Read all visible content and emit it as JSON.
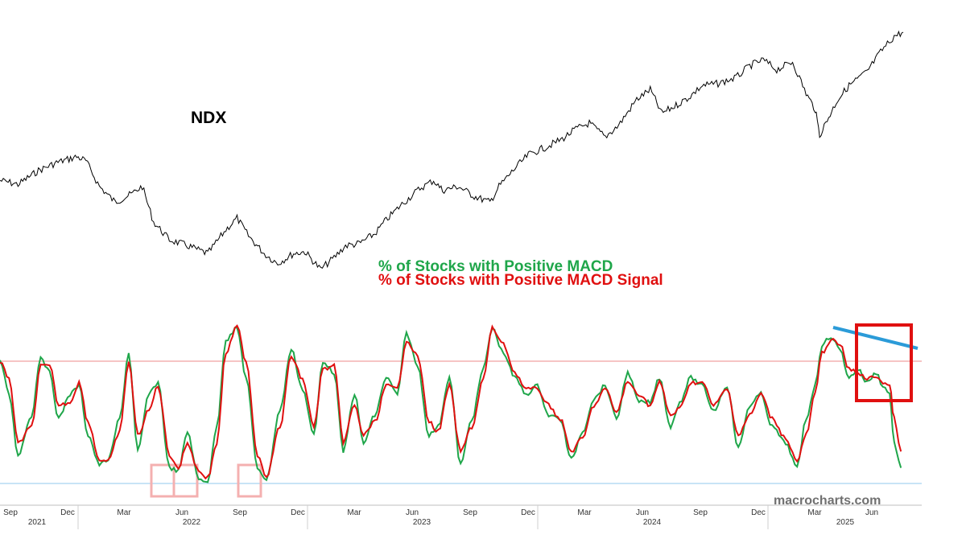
{
  "labels": {
    "index_name": "NDX",
    "legend_green": "% of Stocks with Positive MACD",
    "legend_red": "% of Stocks with Positive MACD Signal",
    "watermark": "macrocharts.com"
  },
  "colors": {
    "price_line": "#000000",
    "green": "#1fa64a",
    "red": "#e01010",
    "upper_ref": "#f0a0a0",
    "lower_ref": "#a8d4f0",
    "trendline": "#2b9bd8",
    "highlight_box": "#e01010",
    "low_box": "#f4b0b0"
  },
  "axis": {
    "months": [
      "Sep",
      "Dec",
      "Mar",
      "Jun",
      "Sep",
      "Dec",
      "Mar",
      "Jun",
      "Sep",
      "Dec",
      "Mar",
      "Jun",
      "Sep",
      "Dec",
      "Mar",
      "Jun"
    ],
    "years": [
      "2021",
      "2022",
      "2023",
      "2024",
      "2025"
    ]
  },
  "chart_data": [
    {
      "type": "line",
      "series": [
        {
          "name": "NDX",
          "x": [
            2021.62,
            2021.7,
            2021.79,
            2021.87,
            2021.96,
            2022.0,
            2022.06,
            2022.13,
            2022.2,
            2022.25,
            2022.3,
            2022.37,
            2022.45,
            2022.54,
            2022.62,
            2022.67,
            2022.72,
            2022.79,
            2022.85,
            2022.92,
            2022.97,
            2023.04,
            2023.1,
            2023.15,
            2023.21,
            2023.28,
            2023.33,
            2023.4,
            2023.48,
            2023.54,
            2023.58,
            2023.65,
            2023.72,
            2023.79,
            2023.83,
            2023.9,
            2023.96,
            2024.04,
            2024.11,
            2024.17,
            2024.23,
            2024.3,
            2024.36,
            2024.44,
            2024.5,
            2024.55,
            2024.6,
            2024.67,
            2024.73,
            2024.8,
            2024.88,
            2024.94,
            2025.0,
            2025.06,
            2025.13,
            2025.19,
            2025.23,
            2025.25,
            2025.29,
            2025.33,
            2025.38,
            2025.46,
            2025.52,
            2025.58,
            2025.62
          ],
          "y": [
            15300,
            15100,
            15800,
            16200,
            16500,
            16300,
            15000,
            14200,
            14600,
            15000,
            13200,
            12300,
            12000,
            11600,
            12800,
            13400,
            12500,
            11600,
            11100,
            11600,
            11700,
            10800,
            11400,
            12000,
            12100,
            12600,
            13300,
            14100,
            14900,
            15300,
            14800,
            15000,
            14500,
            14200,
            15000,
            15900,
            16600,
            17000,
            17400,
            17900,
            18200,
            17500,
            18100,
            19400,
            19900,
            18700,
            19000,
            19500,
            20100,
            20200,
            20500,
            21100,
            21400,
            20900,
            21300,
            19700,
            18900,
            17600,
            18500,
            19400,
            20100,
            20800,
            21800,
            22600,
            22800
          ]
        }
      ]
    },
    {
      "type": "line",
      "ylim": [
        0,
        100
      ],
      "reference_lines": [
        75,
        8
      ],
      "series": [
        {
          "name": "% of Stocks with Positive MACD",
          "x": [
            2021.62,
            2021.66,
            2021.7,
            2021.76,
            2021.8,
            2021.84,
            2021.88,
            2021.93,
            2021.97,
            2022.01,
            2022.06,
            2022.1,
            2022.15,
            2022.19,
            2022.23,
            2022.28,
            2022.32,
            2022.37,
            2022.41,
            2022.45,
            2022.5,
            2022.54,
            2022.58,
            2022.62,
            2022.67,
            2022.71,
            2022.76,
            2022.8,
            2022.86,
            2022.91,
            2022.96,
            2023.01,
            2023.05,
            2023.1,
            2023.14,
            2023.19,
            2023.23,
            2023.28,
            2023.33,
            2023.38,
            2023.42,
            2023.47,
            2023.52,
            2023.56,
            2023.61,
            2023.66,
            2023.71,
            2023.76,
            2023.8,
            2023.85,
            2023.9,
            2023.95,
            2024.0,
            2024.05,
            2024.1,
            2024.15,
            2024.2,
            2024.25,
            2024.3,
            2024.35,
            2024.4,
            2024.45,
            2024.5,
            2024.54,
            2024.59,
            2024.63,
            2024.68,
            2024.73,
            2024.78,
            2024.84,
            2024.89,
            2024.94,
            2024.99,
            2025.04,
            2025.1,
            2025.15,
            2025.19,
            2025.23,
            2025.26,
            2025.3,
            2025.34,
            2025.38,
            2025.42,
            2025.46,
            2025.5,
            2025.53,
            2025.56,
            2025.58,
            2025.61
          ],
          "y": [
            75,
            55,
            18,
            42,
            78,
            68,
            40,
            55,
            60,
            30,
            12,
            15,
            40,
            80,
            20,
            55,
            62,
            10,
            8,
            32,
            3,
            2,
            35,
            88,
            95,
            65,
            10,
            3,
            45,
            82,
            58,
            30,
            75,
            68,
            20,
            55,
            25,
            42,
            65,
            55,
            92,
            72,
            30,
            35,
            65,
            12,
            40,
            70,
            95,
            80,
            65,
            55,
            60,
            42,
            40,
            15,
            32,
            52,
            60,
            40,
            68,
            50,
            50,
            65,
            35,
            50,
            65,
            60,
            45,
            60,
            22,
            48,
            55,
            35,
            25,
            10,
            40,
            60,
            85,
            90,
            82,
            65,
            70,
            62,
            68,
            60,
            55,
            25,
            10
          ]
        },
        {
          "name": "% of Stocks with Positive MACD Signal",
          "x": [
            2021.62,
            2021.66,
            2021.7,
            2021.76,
            2021.8,
            2021.84,
            2021.88,
            2021.93,
            2021.97,
            2022.01,
            2022.06,
            2022.1,
            2022.15,
            2022.19,
            2022.23,
            2022.28,
            2022.32,
            2022.37,
            2022.41,
            2022.45,
            2022.5,
            2022.54,
            2022.58,
            2022.62,
            2022.67,
            2022.71,
            2022.76,
            2022.8,
            2022.86,
            2022.91,
            2022.96,
            2023.01,
            2023.05,
            2023.1,
            2023.14,
            2023.19,
            2023.23,
            2023.28,
            2023.33,
            2023.38,
            2023.42,
            2023.47,
            2023.52,
            2023.56,
            2023.61,
            2023.66,
            2023.71,
            2023.76,
            2023.8,
            2023.85,
            2023.9,
            2023.95,
            2024.0,
            2024.05,
            2024.1,
            2024.15,
            2024.2,
            2024.25,
            2024.3,
            2024.35,
            2024.4,
            2024.45,
            2024.5,
            2024.54,
            2024.59,
            2024.63,
            2024.68,
            2024.73,
            2024.78,
            2024.84,
            2024.89,
            2024.94,
            2024.99,
            2025.04,
            2025.1,
            2025.15,
            2025.19,
            2025.23,
            2025.26,
            2025.3,
            2025.34,
            2025.38,
            2025.42,
            2025.46,
            2025.5,
            2025.53,
            2025.56,
            2025.58,
            2025.61
          ],
          "y": [
            74,
            65,
            25,
            35,
            72,
            72,
            48,
            50,
            62,
            38,
            15,
            14,
            32,
            75,
            30,
            45,
            60,
            18,
            10,
            25,
            8,
            4,
            25,
            80,
            96,
            75,
            18,
            5,
            35,
            78,
            64,
            35,
            70,
            72,
            26,
            48,
            30,
            38,
            60,
            58,
            88,
            78,
            38,
            32,
            60,
            20,
            35,
            64,
            95,
            85,
            68,
            58,
            58,
            48,
            40,
            20,
            28,
            48,
            58,
            44,
            62,
            55,
            48,
            62,
            42,
            46,
            62,
            62,
            48,
            58,
            30,
            42,
            55,
            40,
            28,
            14,
            30,
            55,
            80,
            88,
            85,
            70,
            68,
            64,
            66,
            62,
            60,
            40,
            20
          ]
        }
      ]
    }
  ]
}
